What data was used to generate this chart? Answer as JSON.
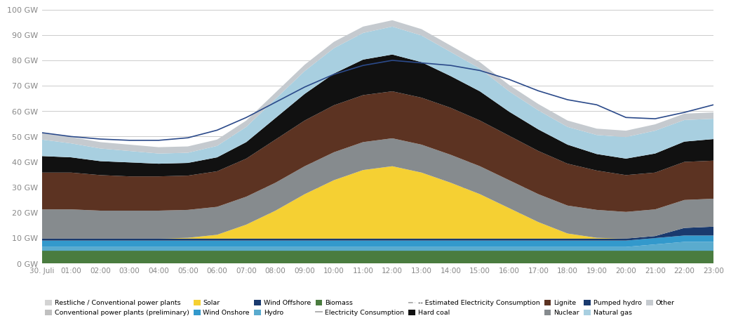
{
  "times": [
    "30. Juli",
    "01:00",
    "02:00",
    "03:00",
    "04:00",
    "05:00",
    "06:00",
    "07:00",
    "08:00",
    "09:00",
    "10:00",
    "11:00",
    "12:00",
    "13:00",
    "14:00",
    "15:00",
    "16:00",
    "17:00",
    "18:00",
    "19:00",
    "20:00",
    "21:00",
    "22:00",
    "23:00"
  ],
  "layers": {
    "Biomass": [
      5.0,
      5.0,
      5.0,
      5.0,
      5.0,
      5.0,
      5.0,
      5.0,
      5.0,
      5.0,
      5.0,
      5.0,
      5.0,
      5.0,
      5.0,
      5.0,
      5.0,
      5.0,
      5.0,
      5.0,
      5.0,
      5.0,
      5.0,
      5.0
    ],
    "Hydro": [
      1.5,
      1.5,
      1.5,
      1.5,
      1.5,
      1.5,
      1.5,
      1.5,
      1.5,
      1.5,
      1.5,
      1.5,
      1.5,
      1.5,
      1.5,
      1.5,
      1.5,
      1.5,
      1.5,
      1.5,
      1.5,
      2.5,
      3.5,
      3.5
    ],
    "Wind Onshore": [
      2.5,
      2.5,
      2.5,
      2.5,
      2.5,
      2.5,
      2.5,
      2.5,
      2.5,
      2.5,
      2.5,
      2.5,
      2.5,
      2.5,
      2.5,
      2.5,
      2.5,
      2.5,
      2.5,
      2.5,
      2.5,
      2.5,
      2.5,
      2.5
    ],
    "Wind Offshore": [
      0.8,
      0.8,
      0.8,
      0.8,
      0.8,
      0.8,
      0.8,
      0.8,
      0.8,
      0.8,
      0.8,
      0.8,
      0.8,
      0.8,
      0.8,
      0.8,
      0.8,
      0.8,
      0.8,
      0.8,
      0.8,
      0.8,
      3.0,
      3.5
    ],
    "Solar": [
      0.0,
      0.0,
      0.0,
      0.0,
      0.0,
      0.3,
      1.5,
      5.5,
      11.0,
      17.5,
      23.0,
      27.0,
      28.5,
      26.0,
      22.0,
      17.5,
      12.0,
      6.5,
      2.0,
      0.3,
      0.0,
      0.0,
      0.0,
      0.0
    ],
    "Nuclear": [
      11.5,
      11.5,
      11.0,
      11.0,
      11.0,
      11.0,
      11.0,
      11.0,
      11.0,
      11.0,
      11.0,
      11.0,
      11.0,
      11.0,
      11.0,
      11.0,
      11.0,
      11.0,
      11.0,
      11.0,
      10.5,
      10.5,
      11.0,
      11.0
    ],
    "Lignite": [
      14.5,
      14.5,
      14.0,
      13.5,
      13.5,
      13.5,
      14.0,
      15.0,
      17.0,
      18.0,
      18.5,
      18.5,
      18.5,
      18.5,
      18.5,
      18.0,
      17.5,
      17.0,
      16.5,
      15.5,
      14.5,
      14.5,
      15.0,
      15.0
    ],
    "Hard coal": [
      6.5,
      6.0,
      5.5,
      5.5,
      5.0,
      5.0,
      5.5,
      6.5,
      8.5,
      10.5,
      12.5,
      14.0,
      14.5,
      14.0,
      12.5,
      11.5,
      9.5,
      8.5,
      7.5,
      6.5,
      6.5,
      7.5,
      8.0,
      8.5
    ],
    "Natural gas": [
      6.5,
      5.5,
      5.0,
      4.5,
      4.0,
      4.0,
      4.5,
      6.0,
      7.5,
      9.0,
      10.0,
      10.5,
      11.0,
      10.5,
      9.5,
      9.0,
      8.0,
      7.5,
      7.0,
      7.5,
      8.5,
      9.0,
      8.5,
      8.0
    ],
    "Other": [
      2.5,
      2.5,
      2.5,
      2.5,
      2.5,
      2.5,
      2.5,
      2.5,
      2.5,
      2.5,
      2.5,
      2.5,
      2.5,
      2.5,
      2.5,
      2.5,
      2.5,
      2.5,
      2.5,
      2.5,
      2.5,
      2.5,
      2.5,
      2.5
    ]
  },
  "consumption": [
    51.5,
    50.0,
    49.0,
    48.5,
    48.5,
    49.5,
    52.5,
    57.5,
    63.5,
    69.5,
    74.5,
    78.0,
    80.0,
    79.0,
    78.0,
    76.0,
    72.5,
    68.0,
    64.5,
    62.5,
    57.5,
    57.0,
    59.5,
    62.5
  ],
  "colors": {
    "Biomass": "#4a7c3f",
    "Hydro": "#5aabce",
    "Wind Onshore": "#3399cc",
    "Wind Offshore": "#1a3a6e",
    "Solar": "#f5d033",
    "Nuclear": "#868b8e",
    "Lignite": "#5c3322",
    "Hard coal": "#111111",
    "Natural gas": "#a8cfe0",
    "Other": "#c5cacf"
  },
  "ylim": [
    0,
    100
  ],
  "yticks": [
    0,
    10,
    20,
    30,
    40,
    50,
    60,
    70,
    80,
    90,
    100
  ],
  "background_color": "#ffffff",
  "grid_color": "#cccccc",
  "consumption_line_color": "#2b4a8a",
  "figsize": [
    10.24,
    5.24
  ]
}
